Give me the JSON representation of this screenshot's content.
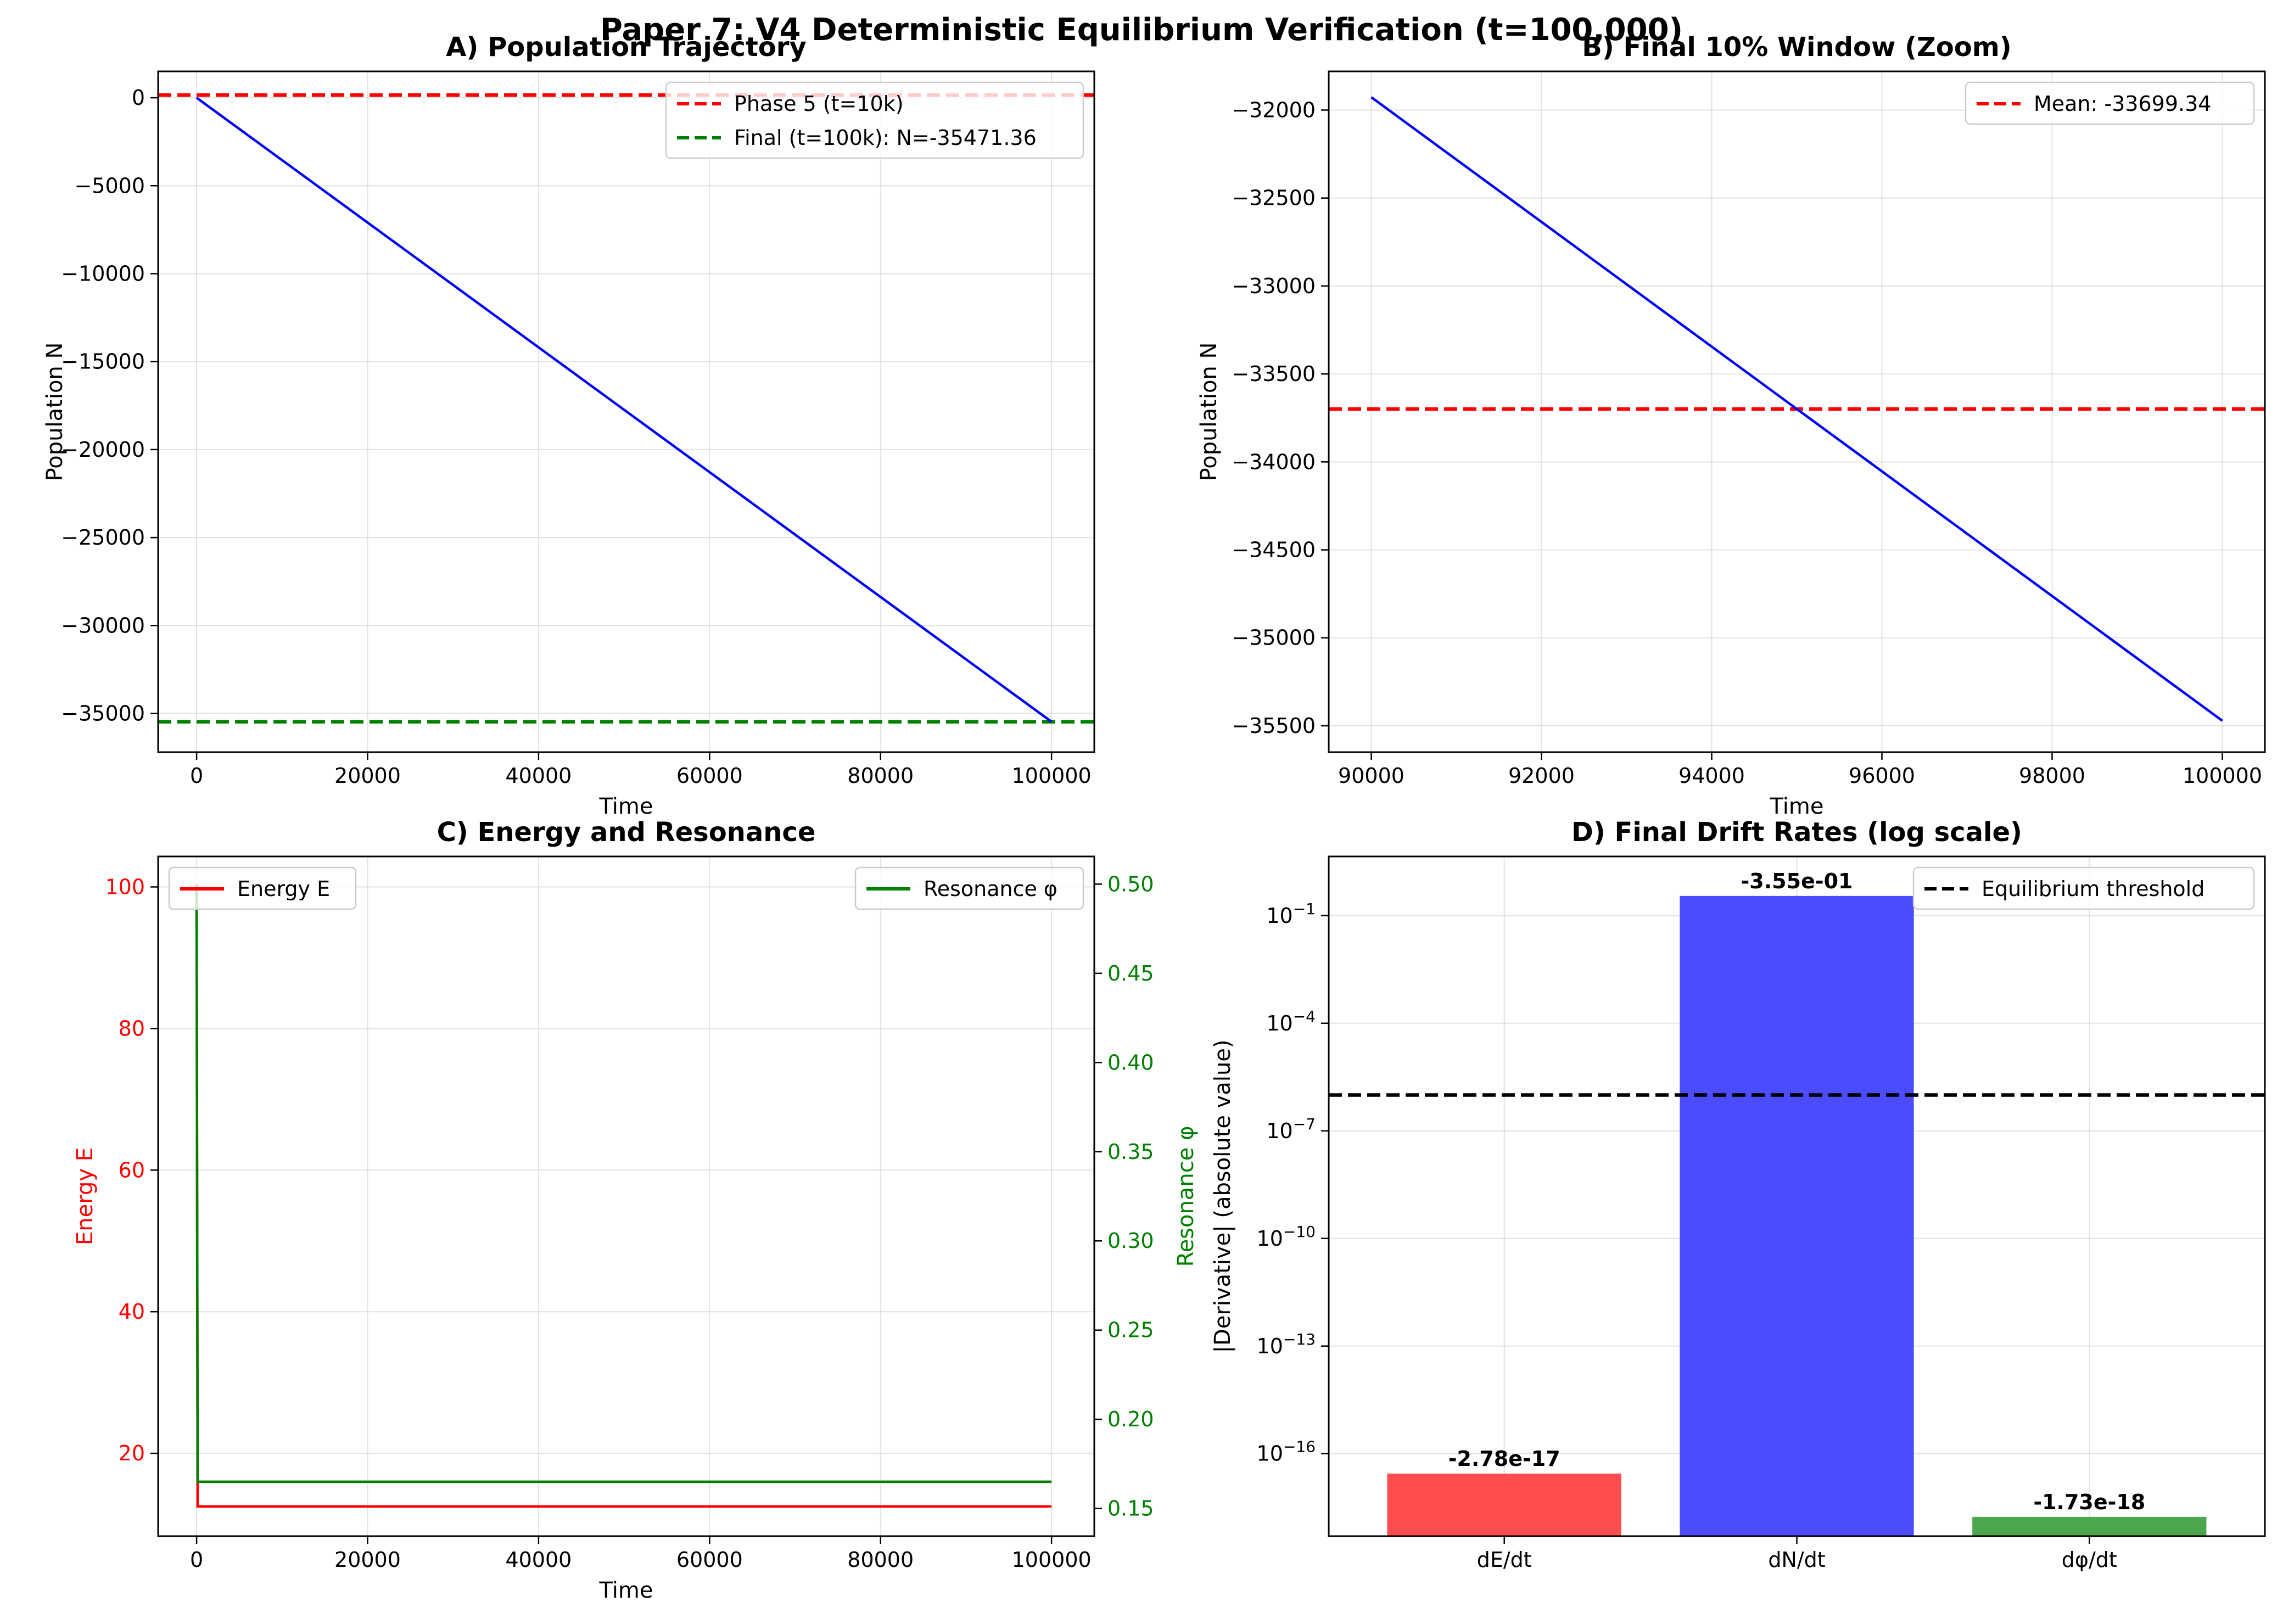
{
  "suptitle": "Paper 7: V4 Deterministic Equilibrium Verification (t=100,000)",
  "colors": {
    "blue": "#0000ff",
    "red": "#ff0000",
    "green": "#008000",
    "black": "#000000",
    "bar_red": "#ff4c4c",
    "bar_blue": "#4c4cff",
    "bar_green": "#4ca64c"
  },
  "chart_data": [
    {
      "id": "A",
      "type": "line",
      "title": "A) Population Trajectory",
      "xlabel": "Time",
      "ylabel": "Population N",
      "xlim": [
        -4500,
        105000
      ],
      "ylim": [
        -37200,
        1500
      ],
      "xticks": [
        0,
        20000,
        40000,
        60000,
        80000,
        100000
      ],
      "xtick_labels": [
        "0",
        "20000",
        "40000",
        "60000",
        "80000",
        "100000"
      ],
      "yticks": [
        0,
        -5000,
        -10000,
        -15000,
        -20000,
        -25000,
        -30000,
        -35000
      ],
      "ytick_labels": [
        "0",
        "−5000",
        "−10000",
        "−15000",
        "−20000",
        "−25000",
        "−30000",
        "−35000"
      ],
      "grid": true,
      "legend": "upper right",
      "series": [
        {
          "name": "",
          "style": "solid",
          "color": "#0000ff",
          "x": [
            0,
            100000
          ],
          "y": [
            0,
            -35471.36
          ]
        }
      ],
      "hlines": [
        {
          "name": "Phase 5 (t=10k)",
          "y": 150,
          "color": "#ff0000",
          "style": "dashed"
        },
        {
          "name": "Final (t=100k): N=-35471.36",
          "y": -35471.36,
          "color": "#008000",
          "style": "dashed"
        }
      ]
    },
    {
      "id": "B",
      "type": "line",
      "title": "B) Final 10% Window (Zoom)",
      "xlabel": "Time",
      "ylabel": "Population N",
      "xlim": [
        89500,
        100500
      ],
      "ylim": [
        -35650,
        -31780
      ],
      "xticks": [
        90000,
        92000,
        94000,
        96000,
        98000,
        100000
      ],
      "xtick_labels": [
        "90000",
        "92000",
        "94000",
        "96000",
        "98000",
        "100000"
      ],
      "yticks": [
        -32000,
        -32500,
        -33000,
        -33500,
        -34000,
        -34500,
        -35000,
        -35500
      ],
      "ytick_labels": [
        "−32000",
        "−32500",
        "−33000",
        "−33500",
        "−34000",
        "−34500",
        "−35000",
        "−35500"
      ],
      "grid": true,
      "legend": "upper right",
      "series": [
        {
          "name": "",
          "style": "solid",
          "color": "#0000ff",
          "x": [
            90000,
            100000
          ],
          "y": [
            -31927,
            -35471.36
          ]
        }
      ],
      "hlines": [
        {
          "name": "Mean: -33699.34",
          "y": -33699.34,
          "color": "#ff0000",
          "style": "dashed"
        }
      ]
    },
    {
      "id": "C",
      "type": "line",
      "title": "C) Energy and Resonance",
      "xlabel": "Time",
      "ylabel": "Energy E",
      "ylabel_right": "Resonance φ",
      "xlim": [
        -4500,
        105000
      ],
      "ylim": [
        8.3,
        104.3
      ],
      "ylim_right": [
        0.1345,
        0.5155
      ],
      "xticks": [
        0,
        20000,
        40000,
        60000,
        80000,
        100000
      ],
      "xtick_labels": [
        "0",
        "20000",
        "40000",
        "60000",
        "80000",
        "100000"
      ],
      "yticks": [
        20,
        40,
        60,
        80,
        100
      ],
      "ytick_labels": [
        "20",
        "40",
        "60",
        "80",
        "100"
      ],
      "yticks_right": [
        0.15,
        0.2,
        0.25,
        0.3,
        0.35,
        0.4,
        0.45,
        0.5
      ],
      "ytick_labels_right": [
        "0.15",
        "0.20",
        "0.25",
        "0.30",
        "0.35",
        "0.40",
        "0.45",
        "0.50"
      ],
      "grid": true,
      "series": [
        {
          "name": "Energy E",
          "axis": "left",
          "color": "#ff0000",
          "x": [
            0,
            120,
            100000
          ],
          "y": [
            100,
            12.5,
            12.5
          ],
          "legend": "upper left"
        },
        {
          "name": "Resonance φ",
          "axis": "right",
          "color": "#008000",
          "x": [
            0,
            120,
            100000
          ],
          "y": [
            0.5,
            0.165,
            0.165
          ],
          "legend": "upper right"
        }
      ]
    },
    {
      "id": "D",
      "type": "bar",
      "scale": "log",
      "title": "D) Final Drift Rates (log scale)",
      "xlabel": "",
      "ylabel": "|Derivative| (absolute value)",
      "categories": [
        "dE/dt",
        "dN/dt",
        "dφ/dt"
      ],
      "values": [
        2.78e-17,
        0.355,
        1.73e-18
      ],
      "value_labels": [
        "-2.78e-17",
        "-3.55e-01",
        "-1.73e-18"
      ],
      "colors": [
        "#ff4c4c",
        "#4c4cff",
        "#4ca64c"
      ],
      "ylim_log10": [
        -18.3,
        0.65
      ],
      "yticks_log10": [
        -16,
        -13,
        -10,
        -7,
        -4,
        -1
      ],
      "ytick_base": "10",
      "ytick_exponents": [
        "−16",
        "−13",
        "−10",
        "−7",
        "−4",
        "−1"
      ],
      "grid": true,
      "legend": "upper right",
      "hlines": [
        {
          "name": "Equilibrium threshold",
          "y": 1e-06,
          "color": "#000000",
          "style": "dashed"
        }
      ]
    }
  ]
}
